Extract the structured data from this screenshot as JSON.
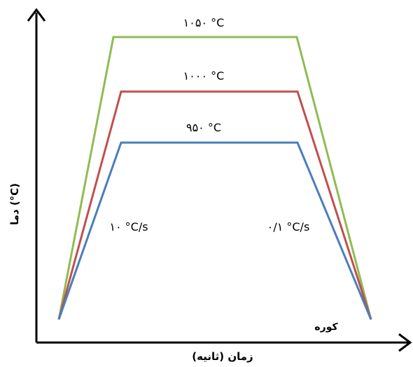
{
  "diagram": {
    "axes": {
      "x_label": "زمان (ثانیه)",
      "y_label": "دما (°C)"
    },
    "profiles": [
      {
        "label": "۱۰۵۰ °C",
        "color": "#8fbc53"
      },
      {
        "label": "۱۰۰۰ °C",
        "color": "#c0504d"
      },
      {
        "label": "۹۵۰ °C",
        "color": "#4a7ebb"
      }
    ],
    "annotations": {
      "heating_rate": "۱۰ °C/s",
      "cooling_rate": "۰/۱ °C/s",
      "furnace": "کوره"
    }
  }
}
